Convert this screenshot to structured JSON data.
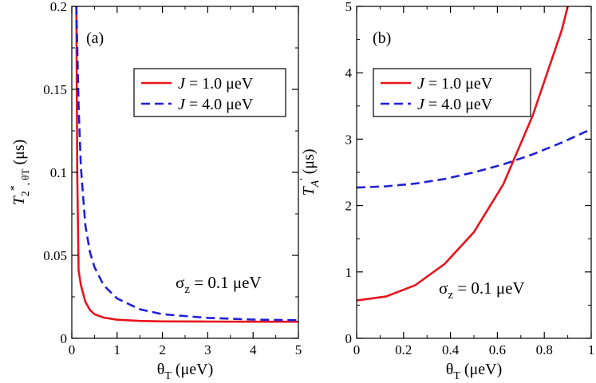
{
  "chart_data": [
    {
      "type": "line",
      "panel_label": "(a)",
      "xlabel": "θT (μeV)",
      "ylabel": "T2*, θT (μs)",
      "xlim": [
        0,
        5
      ],
      "ylim": [
        0,
        0.2
      ],
      "xticks": [
        0,
        1,
        2,
        3,
        4,
        5
      ],
      "xtick_labels": [
        "0",
        "1",
        "2",
        "3",
        "4",
        "5"
      ],
      "yticks": [
        0,
        0.05,
        0.1,
        0.15,
        0.2
      ],
      "ytick_labels": [
        "0",
        "0.05",
        "0.1",
        "0.15",
        "0.2"
      ],
      "annotation": "σz = 0.1 μeV",
      "legend_position": "top-right",
      "series": [
        {
          "name": "J = 1.0 μeV",
          "color": "#e8141c",
          "dash": "solid",
          "x": [
            0.1,
            0.12,
            0.15,
            0.2,
            0.3,
            0.4,
            0.5,
            0.7,
            1.0,
            1.5,
            2.0,
            3.0,
            4.0,
            5.0
          ],
          "y": [
            0.2,
            0.1,
            0.041,
            0.032,
            0.022,
            0.017,
            0.0145,
            0.0125,
            0.0112,
            0.0105,
            0.0102,
            0.0101,
            0.01,
            0.01
          ]
        },
        {
          "name": "J = 4.0 μeV",
          "color": "#1f1fd6",
          "dash": "dashed",
          "x": [
            0.1,
            0.15,
            0.2,
            0.3,
            0.4,
            0.5,
            0.7,
            1.0,
            1.5,
            2.0,
            3.0,
            4.0,
            5.0
          ],
          "y": [
            0.2,
            0.14,
            0.103,
            0.068,
            0.052,
            0.043,
            0.032,
            0.024,
            0.0175,
            0.0145,
            0.0123,
            0.0113,
            0.0109
          ]
        }
      ]
    },
    {
      "type": "line",
      "panel_label": "(b)",
      "xlabel": "θT (μeV)",
      "ylabel": "TA' (μs)",
      "xlim": [
        0,
        1
      ],
      "ylim": [
        0,
        5
      ],
      "xticks": [
        0,
        0.2,
        0.4,
        0.6,
        0.8,
        1
      ],
      "xtick_labels": [
        "0",
        "0.2",
        "0.4",
        "0.6",
        "0.8",
        "1"
      ],
      "yticks": [
        0,
        1,
        2,
        3,
        4,
        5
      ],
      "ytick_labels": [
        "0",
        "1",
        "2",
        "3",
        "4",
        "5"
      ],
      "annotation": "σz = 0.1 μeV",
      "legend_position": "top-right",
      "series": [
        {
          "name": "J = 1.0 μeV",
          "color": "#e8141c",
          "dash": "solid",
          "x": [
            0,
            0.125,
            0.25,
            0.375,
            0.5,
            0.625,
            0.75,
            0.875,
            0.9
          ],
          "y": [
            0.57,
            0.63,
            0.8,
            1.12,
            1.6,
            2.32,
            3.35,
            4.65,
            5.0
          ]
        },
        {
          "name": "J = 4.0 μeV",
          "color": "#1f1fd6",
          "dash": "dashed",
          "x": [
            0,
            0.125,
            0.25,
            0.375,
            0.5,
            0.625,
            0.75,
            0.875,
            1.0
          ],
          "y": [
            2.27,
            2.29,
            2.33,
            2.4,
            2.5,
            2.62,
            2.77,
            2.95,
            3.15
          ]
        }
      ]
    }
  ]
}
